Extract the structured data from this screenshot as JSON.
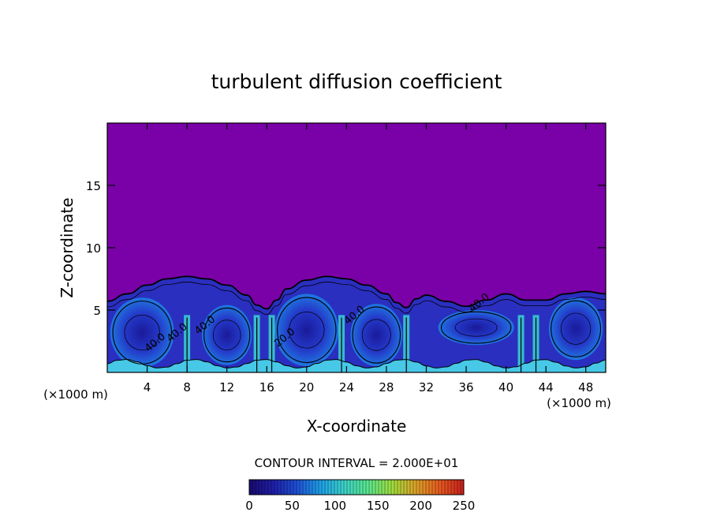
{
  "chart_data": {
    "type": "heatmap",
    "title": "turbulent diffusion coefficient",
    "xlabel": "X-coordinate",
    "ylabel": "Z-coordinate",
    "x_unit_left": "(×1000 m)",
    "x_unit_right": "(×1000 m)",
    "xlim": [
      0,
      50
    ],
    "ylim": [
      0,
      20
    ],
    "xticks": [
      "4",
      "8",
      "12",
      "16",
      "20",
      "24",
      "28",
      "32",
      "36",
      "40",
      "44",
      "48"
    ],
    "yticks": [
      "5",
      "10",
      "15"
    ],
    "boundary_layer_top": {
      "x": [
        0,
        2,
        4,
        6,
        8,
        10,
        12,
        14,
        15,
        16,
        17,
        18,
        20,
        22,
        24,
        26,
        28,
        29,
        30,
        31,
        32,
        34,
        36,
        38,
        40,
        42,
        44,
        46,
        48,
        50
      ],
      "z": [
        5.7,
        6.3,
        7.0,
        7.5,
        7.7,
        7.5,
        7.0,
        6.2,
        5.4,
        5.1,
        5.8,
        6.7,
        7.4,
        7.7,
        7.5,
        7.0,
        6.3,
        5.6,
        5.2,
        5.9,
        6.2,
        5.7,
        5.3,
        5.8,
        6.3,
        5.8,
        5.8,
        6.3,
        6.5,
        6.3
      ]
    },
    "contour_labels": [
      {
        "text": "40.0",
        "x": 5,
        "z": 2.2
      },
      {
        "text": "40.0",
        "x": 7.2,
        "z": 3.0
      },
      {
        "text": "40.0",
        "x": 10,
        "z": 3.6
      },
      {
        "text": "20.0",
        "x": 18,
        "z": 2.6
      },
      {
        "text": "40.0",
        "x": 25,
        "z": 4.4
      },
      {
        "text": "40.0",
        "x": 37.5,
        "z": 5.4
      }
    ],
    "colorbar": {
      "title": "CONTOUR INTERVAL = 2.000E+01",
      "min": 0,
      "max": 250,
      "ticks": [
        "0",
        "50",
        "100",
        "150",
        "200",
        "250"
      ],
      "colors": [
        "#1a0a6e",
        "#1e1ea8",
        "#1e50d6",
        "#1ea0e6",
        "#3cd2c8",
        "#5ae68c",
        "#a0dc3c",
        "#dca028",
        "#e65a1e",
        "#c81e1e"
      ]
    },
    "background_value_color": "#7a00a8"
  }
}
